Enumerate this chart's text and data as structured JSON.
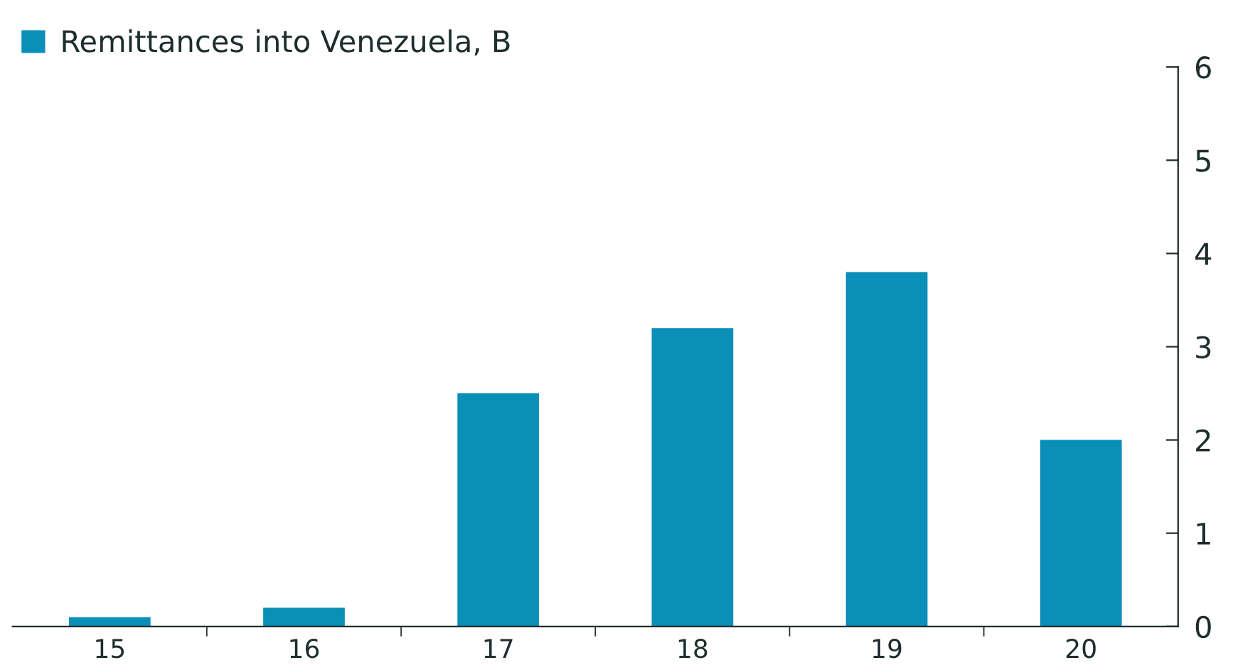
{
  "chart_data": {
    "type": "bar",
    "categories": [
      "15",
      "16",
      "17",
      "18",
      "19",
      "20"
    ],
    "series": [
      {
        "name": "Remittances into Venezuela, B",
        "color": "#0a8fb8",
        "values": [
          0.1,
          0.2,
          2.5,
          3.2,
          3.8,
          2.0
        ]
      }
    ],
    "ylim": [
      0,
      6
    ],
    "yticks": [
      0,
      1,
      2,
      3,
      4,
      5,
      6
    ],
    "grid": false,
    "legend": "top left"
  }
}
